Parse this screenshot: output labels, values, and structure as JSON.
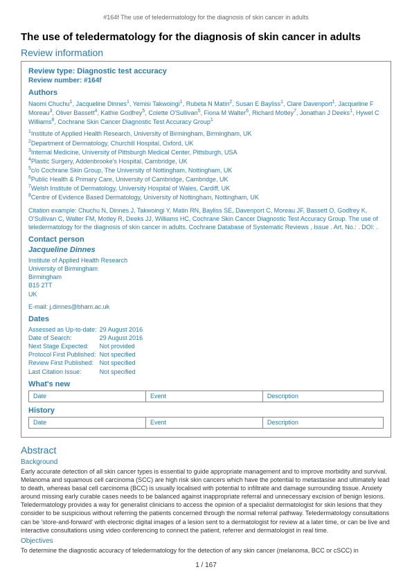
{
  "header": "#164f The use of teledermatology for the diagnosis of skin cancer in adults",
  "title": "The use of teledermatology for the diagnosis of skin cancer in adults",
  "review_info_heading": "Review information",
  "review_type": "Review type: Diagnostic test accuracy",
  "review_number": "Review number: #164f",
  "authors_heading": "Authors",
  "authors_html": "Naomi Chuchu<sup>1</sup>, Jacqueline Dinnes<sup>1</sup>, Yemisi Takwoingi<sup>1</sup>, Rubeta N Matin<sup>2</sup>, Susan E Bayliss<sup>1</sup>, Clare Davenport<sup>1</sup>, Jacqueline F Moreau<sup>3</sup>, Oliver Bassett<sup>4</sup>, Kathie Godfrey<sup>5</sup>, Colette O'Sullivan<sup>5</sup>, Fiona M Walter<sup>6</sup>, Richard Motley<sup>7</sup>, Jonathan J Deeks<sup>1</sup>, Hywel C Williams<sup>8</sup>, Cochrane Skin Cancer Diagnostic Test Accuracy Group<sup>1</sup>",
  "affiliations": [
    "<sup>1</sup>Institute of Applied Health Research, University of Birmingham, Birmingham, UK",
    "<sup>2</sup>Department of Dermatology, Churchill Hospital, Oxford, UK",
    "<sup>3</sup>Internal Medicine, University of Pittsburgh Medical Center, Pittsburgh, USA",
    "<sup>4</sup>Plastic Surgery, Addenbrooke's Hospital, Cambridge, UK",
    "<sup>5</sup>c/o Cochrane Skin Group, The University of Nottingham, Nottingham, UK",
    "<sup>6</sup>Public Health & Primary Care, University of Cambridge, Cambridge, UK",
    "<sup>7</sup>Welsh Institute of Dermatology, University Hospital of Wales, Cardiff, UK",
    "<sup>8</sup>Centre of Evidence Based Dermatology, University of Nottingham, Nottingham, UK"
  ],
  "citation": "Citation example: Chuchu N, Dinnes J, Takwoingi Y, Matin RN, Bayliss SE, Davenport C, Moreau JF, Bassett O, Godfrey K, O'Sullivan C, Walter FM, Motley R, Deeks JJ, Williams HC, Cochrane Skin Cancer Diagnostic Test Accuracy Group. The use of teledermatology for the diagnosis of skin cancer in adults. Cochrane Database of Systematic Reviews , Issue . Art. No.: . DOI: .",
  "contact_heading": "Contact person",
  "contact_name": "Jacqueline Dinnes",
  "contact_lines": [
    "Institute of Applied Health Research",
    "University of Birmingham",
    "Birmingham",
    "B15 2TT",
    "UK"
  ],
  "email_label": "E-mail: j.dinnes@bham.ac.uk",
  "dates_heading": "Dates",
  "dates": [
    [
      "Assessed as Up-to-date:",
      "29 August 2016"
    ],
    [
      "Date of Search:",
      "29 August 2016"
    ],
    [
      "Next Stage Expected:",
      "Not provided"
    ],
    [
      "Protocol First Published:",
      "Not specified"
    ],
    [
      "Review First Published:",
      "Not specified"
    ],
    [
      "Last Citation Issue:",
      "Not specified"
    ]
  ],
  "whatsnew_heading": "What's new",
  "history_heading": "History",
  "table_cols": [
    "Date",
    "Event",
    "Description"
  ],
  "abstract_heading": "Abstract",
  "background_heading": "Background",
  "background_text": "Early accurate detection of all skin cancer types is essential to guide appropriate management and to improve morbidity and survival. Melanoma and squamous cell carcinoma (SCC) are high risk skin cancers which have the potential to metastasise and ultimately lead to death, whereas basal cell carcinoma (BCC) is usually localised with potential to infiltrate and damage surrounding tissue. Anxiety around missing early curable cases needs to be balanced against inappropriate referral and unnecessary excision of benign lesions. Teledermatology provides a way for generalist clinicians to access the opinion of a specialist dermatologist for skin lesions that they consider to be suspicious without referring the patients concerned through the normal referral pathway. Teledermatology consultations can be 'store-and-forward' with electronic digital images of a lesion sent to a dermatologist for review at a later time, or can be live and interactive consultations using video conferencing to connect the patient, referrer and dermatologist in real time.",
  "objectives_heading": "Objectives",
  "objectives_text": "To determine the diagnostic accuracy of teledermatology for the detection of any skin cancer (melanoma, BCC or cSCC) in",
  "page_num": "1 / 167",
  "colors": {
    "link": "#2a7ab0",
    "text": "#333333",
    "border": "#888888"
  }
}
